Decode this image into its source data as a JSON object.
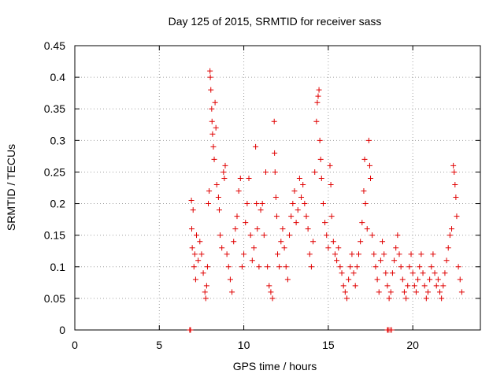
{
  "chart_data": {
    "type": "scatter",
    "title": "Day 125 of 2015, SRMTID for receiver sass",
    "xlabel": "GPS time / hours",
    "ylabel": "SRMTID / TECUs",
    "xlim": [
      0,
      24
    ],
    "ylim": [
      0,
      0.45
    ],
    "xticks": [
      0,
      5,
      10,
      15,
      20
    ],
    "xtick_labels": [
      "0",
      "5",
      "10",
      "15",
      "20"
    ],
    "yticks": [
      0,
      0.05,
      0.1,
      0.15,
      0.2,
      0.25,
      0.3,
      0.35,
      0.4,
      0.45
    ],
    "ytick_labels": [
      "0",
      "0.05",
      "0.1",
      "0.15",
      "0.2",
      "0.25",
      "0.3",
      "0.35",
      "0.4",
      "0.45"
    ],
    "grid": true,
    "marker": "+",
    "color": "#e00000",
    "series": [
      {
        "name": "SRMTID",
        "points": [
          [
            6.8,
            0.0
          ],
          [
            6.85,
            0.0
          ],
          [
            18.5,
            0.0
          ],
          [
            18.55,
            0.0
          ],
          [
            18.65,
            0.0
          ],
          [
            18.75,
            0.0
          ],
          [
            6.9,
            0.205
          ],
          [
            6.92,
            0.16
          ],
          [
            6.95,
            0.13
          ],
          [
            7.0,
            0.19
          ],
          [
            7.05,
            0.1
          ],
          [
            7.1,
            0.12
          ],
          [
            7.15,
            0.08
          ],
          [
            7.2,
            0.15
          ],
          [
            7.3,
            0.11
          ],
          [
            7.4,
            0.14
          ],
          [
            7.5,
            0.12
          ],
          [
            7.6,
            0.09
          ],
          [
            7.7,
            0.06
          ],
          [
            7.75,
            0.05
          ],
          [
            7.8,
            0.07
          ],
          [
            7.85,
            0.1
          ],
          [
            7.9,
            0.2
          ],
          [
            7.95,
            0.22
          ],
          [
            8.0,
            0.41
          ],
          [
            8.02,
            0.4
          ],
          [
            8.05,
            0.38
          ],
          [
            8.1,
            0.35
          ],
          [
            8.12,
            0.33
          ],
          [
            8.15,
            0.31
          ],
          [
            8.2,
            0.29
          ],
          [
            8.25,
            0.27
          ],
          [
            8.3,
            0.36
          ],
          [
            8.35,
            0.32
          ],
          [
            8.4,
            0.23
          ],
          [
            8.5,
            0.21
          ],
          [
            8.55,
            0.19
          ],
          [
            8.6,
            0.15
          ],
          [
            8.7,
            0.13
          ],
          [
            8.8,
            0.25
          ],
          [
            8.85,
            0.24
          ],
          [
            8.9,
            0.26
          ],
          [
            9.0,
            0.12
          ],
          [
            9.1,
            0.1
          ],
          [
            9.2,
            0.08
          ],
          [
            9.3,
            0.06
          ],
          [
            9.4,
            0.14
          ],
          [
            9.5,
            0.16
          ],
          [
            9.6,
            0.18
          ],
          [
            9.7,
            0.22
          ],
          [
            9.8,
            0.24
          ],
          [
            9.9,
            0.1
          ],
          [
            10.0,
            0.12
          ],
          [
            10.1,
            0.17
          ],
          [
            10.2,
            0.2
          ],
          [
            10.3,
            0.24
          ],
          [
            10.4,
            0.15
          ],
          [
            10.5,
            0.11
          ],
          [
            10.6,
            0.13
          ],
          [
            10.7,
            0.29
          ],
          [
            10.75,
            0.2
          ],
          [
            10.8,
            0.16
          ],
          [
            10.9,
            0.1
          ],
          [
            11.0,
            0.19
          ],
          [
            11.1,
            0.2
          ],
          [
            11.2,
            0.15
          ],
          [
            11.3,
            0.25
          ],
          [
            11.4,
            0.1
          ],
          [
            11.5,
            0.07
          ],
          [
            11.6,
            0.06
          ],
          [
            11.7,
            0.05
          ],
          [
            11.8,
            0.33
          ],
          [
            11.82,
            0.28
          ],
          [
            11.85,
            0.25
          ],
          [
            11.9,
            0.21
          ],
          [
            11.95,
            0.18
          ],
          [
            12.0,
            0.12
          ],
          [
            12.1,
            0.1
          ],
          [
            12.2,
            0.14
          ],
          [
            12.3,
            0.16
          ],
          [
            12.4,
            0.13
          ],
          [
            12.5,
            0.1
          ],
          [
            12.6,
            0.08
          ],
          [
            12.7,
            0.15
          ],
          [
            12.8,
            0.18
          ],
          [
            12.9,
            0.2
          ],
          [
            13.0,
            0.22
          ],
          [
            13.1,
            0.17
          ],
          [
            13.2,
            0.19
          ],
          [
            13.3,
            0.24
          ],
          [
            13.4,
            0.21
          ],
          [
            13.5,
            0.23
          ],
          [
            13.6,
            0.2
          ],
          [
            13.7,
            0.18
          ],
          [
            13.8,
            0.16
          ],
          [
            13.9,
            0.12
          ],
          [
            14.0,
            0.1
          ],
          [
            14.1,
            0.14
          ],
          [
            14.2,
            0.25
          ],
          [
            14.3,
            0.33
          ],
          [
            14.35,
            0.36
          ],
          [
            14.4,
            0.37
          ],
          [
            14.45,
            0.38
          ],
          [
            14.5,
            0.3
          ],
          [
            14.55,
            0.27
          ],
          [
            14.6,
            0.24
          ],
          [
            14.7,
            0.2
          ],
          [
            14.8,
            0.17
          ],
          [
            14.9,
            0.15
          ],
          [
            15.0,
            0.13
          ],
          [
            15.1,
            0.26
          ],
          [
            15.15,
            0.23
          ],
          [
            15.2,
            0.18
          ],
          [
            15.3,
            0.14
          ],
          [
            15.4,
            0.12
          ],
          [
            15.5,
            0.11
          ],
          [
            15.6,
            0.13
          ],
          [
            15.7,
            0.1
          ],
          [
            15.8,
            0.09
          ],
          [
            15.9,
            0.07
          ],
          [
            16.0,
            0.06
          ],
          [
            16.1,
            0.05
          ],
          [
            16.2,
            0.08
          ],
          [
            16.3,
            0.1
          ],
          [
            16.4,
            0.12
          ],
          [
            16.5,
            0.09
          ],
          [
            16.6,
            0.07
          ],
          [
            16.7,
            0.1
          ],
          [
            16.8,
            0.12
          ],
          [
            16.9,
            0.14
          ],
          [
            17.0,
            0.17
          ],
          [
            17.1,
            0.22
          ],
          [
            17.15,
            0.27
          ],
          [
            17.2,
            0.2
          ],
          [
            17.3,
            0.16
          ],
          [
            17.4,
            0.3
          ],
          [
            17.45,
            0.26
          ],
          [
            17.5,
            0.24
          ],
          [
            17.6,
            0.15
          ],
          [
            17.7,
            0.12
          ],
          [
            17.8,
            0.1
          ],
          [
            17.9,
            0.08
          ],
          [
            18.0,
            0.06
          ],
          [
            18.1,
            0.11
          ],
          [
            18.2,
            0.14
          ],
          [
            18.3,
            0.12
          ],
          [
            18.4,
            0.09
          ],
          [
            18.5,
            0.07
          ],
          [
            18.6,
            0.05
          ],
          [
            18.7,
            0.06
          ],
          [
            18.8,
            0.09
          ],
          [
            18.9,
            0.11
          ],
          [
            19.0,
            0.13
          ],
          [
            19.1,
            0.15
          ],
          [
            19.2,
            0.12
          ],
          [
            19.3,
            0.1
          ],
          [
            19.4,
            0.08
          ],
          [
            19.5,
            0.06
          ],
          [
            19.6,
            0.05
          ],
          [
            19.7,
            0.07
          ],
          [
            19.8,
            0.1
          ],
          [
            19.9,
            0.12
          ],
          [
            20.0,
            0.09
          ],
          [
            20.1,
            0.07
          ],
          [
            20.2,
            0.06
          ],
          [
            20.3,
            0.08
          ],
          [
            20.4,
            0.1
          ],
          [
            20.5,
            0.12
          ],
          [
            20.6,
            0.09
          ],
          [
            20.7,
            0.07
          ],
          [
            20.8,
            0.05
          ],
          [
            20.9,
            0.06
          ],
          [
            21.0,
            0.08
          ],
          [
            21.1,
            0.1
          ],
          [
            21.2,
            0.12
          ],
          [
            21.3,
            0.09
          ],
          [
            21.4,
            0.07
          ],
          [
            21.5,
            0.08
          ],
          [
            21.6,
            0.06
          ],
          [
            21.7,
            0.05
          ],
          [
            21.8,
            0.07
          ],
          [
            21.9,
            0.09
          ],
          [
            22.0,
            0.11
          ],
          [
            22.1,
            0.13
          ],
          [
            22.2,
            0.15
          ],
          [
            22.3,
            0.16
          ],
          [
            22.4,
            0.26
          ],
          [
            22.45,
            0.25
          ],
          [
            22.5,
            0.23
          ],
          [
            22.55,
            0.21
          ],
          [
            22.6,
            0.18
          ],
          [
            22.7,
            0.1
          ],
          [
            22.8,
            0.08
          ],
          [
            22.9,
            0.06
          ]
        ]
      }
    ]
  }
}
